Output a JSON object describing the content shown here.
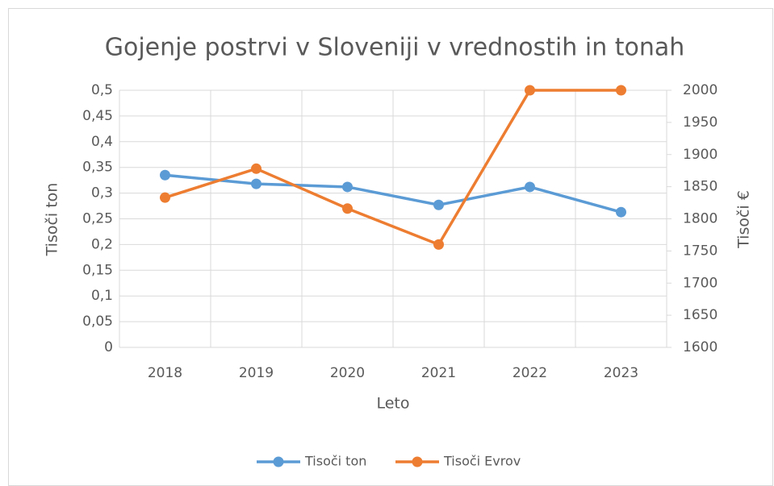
{
  "chart_data": {
    "type": "line",
    "title": "Gojenje postrvi v Sloveniji v vrednostih in tonah",
    "x_label": "Leto",
    "y_label": "Tisoči ton",
    "y2_label": "Tisoči €",
    "categories": [
      "2018",
      "2019",
      "2020",
      "2021",
      "2022",
      "2023"
    ],
    "series": [
      {
        "name": "Tisoči ton",
        "color": "#5b9bd5",
        "values": [
          0.335,
          0.318,
          0.312,
          0.277,
          0.312,
          0.263
        ]
      },
      {
        "name": "Tisoči Evrov",
        "color": "#ed7d31",
        "axis": "y2",
        "values": [
          1833,
          1878,
          1816,
          1760,
          2000,
          2000
        ]
      }
    ],
    "ylim": [
      0,
      0.5
    ],
    "yticks": [
      0,
      {
        "value": 0.05,
        "label": "0,05"
      },
      {
        "value": 0.1,
        "label": "0,1"
      },
      {
        "value": 0.15,
        "label": "0,15"
      },
      {
        "value": 0.2,
        "label": "0,2"
      },
      {
        "value": 0.25,
        "label": "0,25"
      },
      {
        "value": 0.3,
        "label": "0,3"
      },
      {
        "value": 0.35,
        "label": "0,35"
      },
      {
        "value": 0.4,
        "label": "0,4"
      },
      {
        "value": 0.45,
        "label": "0,45"
      },
      {
        "value": 0.5,
        "label": "0,5"
      }
    ],
    "y2lim": [
      1600,
      2000
    ],
    "y2ticks": [
      1600,
      1650,
      1700,
      1750,
      1800,
      1850,
      1900,
      1950,
      2000
    ],
    "grid": true,
    "legend": "bottom"
  }
}
